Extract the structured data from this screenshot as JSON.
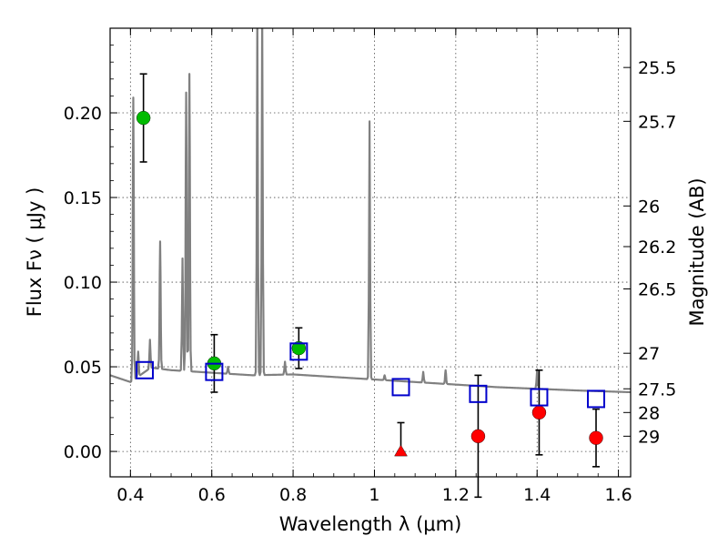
{
  "chart_data": {
    "type": "scatter",
    "title": "",
    "xlabel": "Wavelength  λ (μm)",
    "ylabel": "Flux  Fν  ( μJy )",
    "y2label": "Magnitude (AB)",
    "xlim": [
      0.35,
      1.63
    ],
    "ylim": [
      -0.015,
      0.25
    ],
    "grid": true,
    "x_ticks": [
      0.4,
      0.6,
      0.8,
      1.0,
      1.2,
      1.4,
      1.6
    ],
    "x_tick_labels": [
      "0.4",
      "0.6",
      "0.8",
      "1",
      "1.2",
      "1.4",
      "1.6"
    ],
    "y_ticks": [
      0.0,
      0.05,
      0.1,
      0.15,
      0.2
    ],
    "y_tick_labels": [
      "0.00",
      "0.05",
      "0.10",
      "0.15",
      "0.20"
    ],
    "mag_ticks": [
      {
        "flux": 0.2268,
        "label": "25.5"
      },
      {
        "flux": 0.195,
        "label": "25.7"
      },
      {
        "flux": 0.145,
        "label": "26"
      },
      {
        "flux": 0.121,
        "label": "26.2"
      },
      {
        "flux": 0.096,
        "label": "26.5"
      },
      {
        "flux": 0.058,
        "label": "27"
      },
      {
        "flux": 0.037,
        "label": "27.5"
      },
      {
        "flux": 0.023,
        "label": "28"
      },
      {
        "flux": 0.009,
        "label": "29"
      }
    ],
    "series": [
      {
        "kind": "detections",
        "color": "#00bb00",
        "marker": "circle",
        "points": [
          {
            "x": 0.432,
            "y": 0.197,
            "err": 0.026
          },
          {
            "x": 0.606,
            "y": 0.052,
            "err": 0.017
          },
          {
            "x": 0.814,
            "y": 0.061,
            "err": 0.012
          }
        ]
      },
      {
        "kind": "non-detections",
        "color": "#ff0000",
        "marker": "circle",
        "points": [
          {
            "x": 1.255,
            "y": 0.009,
            "err": 0.036
          },
          {
            "x": 1.405,
            "y": 0.023,
            "err": 0.025
          },
          {
            "x": 1.545,
            "y": 0.008,
            "err": 0.017
          }
        ]
      },
      {
        "kind": "non-detection-triangle",
        "color": "#ff0000",
        "marker": "triangle",
        "points": [
          {
            "x": 1.065,
            "y": 0.0,
            "err_up": 0.017
          }
        ]
      },
      {
        "kind": "model-photometry",
        "color": "#0000cc",
        "marker": "square",
        "points": [
          {
            "x": 0.435,
            "y": 0.048
          },
          {
            "x": 0.606,
            "y": 0.047
          },
          {
            "x": 0.814,
            "y": 0.059
          },
          {
            "x": 1.065,
            "y": 0.038
          },
          {
            "x": 1.255,
            "y": 0.034
          },
          {
            "x": 1.405,
            "y": 0.032
          },
          {
            "x": 1.545,
            "y": 0.031
          }
        ]
      }
    ],
    "model_spectrum": {
      "color": "#808080",
      "continuum": [
        [
          0.35,
          0.045
        ],
        [
          0.4,
          0.041
        ],
        [
          0.45,
          0.0495
        ],
        [
          0.5,
          0.048
        ],
        [
          0.6,
          0.0465
        ],
        [
          0.7,
          0.045
        ],
        [
          0.8,
          0.0455
        ],
        [
          0.9,
          0.044
        ],
        [
          1.0,
          0.0425
        ],
        [
          1.1,
          0.041
        ],
        [
          1.2,
          0.0395
        ],
        [
          1.3,
          0.038
        ],
        [
          1.4,
          0.037
        ],
        [
          1.5,
          0.036
        ],
        [
          1.63,
          0.035
        ]
      ],
      "emission_lines": [
        {
          "x": 0.407,
          "peak": 0.209
        },
        {
          "x": 0.419,
          "peak": 0.059
        },
        {
          "x": 0.448,
          "peak": 0.066
        },
        {
          "x": 0.473,
          "peak": 0.124
        },
        {
          "x": 0.528,
          "peak": 0.114
        },
        {
          "x": 0.537,
          "peak": 0.212
        },
        {
          "x": 0.545,
          "peak": 0.223
        },
        {
          "x": 0.64,
          "peak": 0.05
        },
        {
          "x": 0.712,
          "peak": 0.26
        },
        {
          "x": 0.724,
          "peak": 0.26
        },
        {
          "x": 0.78,
          "peak": 0.053
        },
        {
          "x": 0.988,
          "peak": 0.195
        },
        {
          "x": 1.025,
          "peak": 0.045
        },
        {
          "x": 1.12,
          "peak": 0.047
        },
        {
          "x": 1.175,
          "peak": 0.048
        },
        {
          "x": 1.4,
          "peak": 0.048
        }
      ]
    }
  }
}
